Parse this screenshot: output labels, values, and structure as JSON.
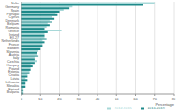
{
  "chart_data": {
    "type": "bar",
    "orientation": "horizontal",
    "xlabel": "Percentage",
    "categories": [
      "Malta",
      "Germany",
      "Spain",
      "Portugal",
      "Cyprus",
      "Denmark",
      "Belgium",
      "Romania",
      "Greece",
      "Ireland",
      "EU-27",
      "Netherlands",
      "France",
      "Sweden",
      "Slovenia",
      "Austria",
      "Italy",
      "Czechia",
      "Hungary",
      "Poland",
      "Estonia",
      "Croatia",
      "Latvia",
      "Lithuania",
      "Slovakia",
      "Finland",
      "Bulgaria"
    ],
    "series": [
      {
        "name": "2012-2015",
        "color": "#a8d8d8",
        "values": [
          70,
          27,
          22,
          18,
          16,
          15,
          14,
          13,
          21,
          12,
          12,
          11,
          11,
          10,
          9,
          8,
          7,
          8,
          5,
          5,
          4,
          3,
          2,
          2,
          2,
          1,
          1
        ]
      },
      {
        "name": "2016-2019",
        "color": "#1f8a8a",
        "values": [
          64,
          25,
          20,
          19,
          17,
          16,
          15,
          12,
          14,
          12,
          13,
          12,
          11,
          10,
          8,
          9,
          7,
          7,
          6,
          5,
          4,
          3,
          3,
          2,
          2,
          1,
          1
        ]
      }
    ],
    "xlim": [
      0,
      80
    ],
    "xticks": [
      0,
      10,
      20,
      30,
      40,
      50,
      60,
      70,
      80
    ],
    "grid": true,
    "legend": "bottom-right"
  }
}
